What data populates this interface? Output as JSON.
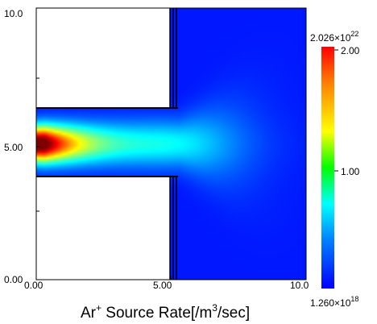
{
  "chart_data": {
    "type": "heatmap",
    "title": "",
    "xlabel": {
      "base": "Ar",
      "base_sup": "+",
      "text1": " Source Rate[/m",
      "sup": "3",
      "text2": "/sec]"
    },
    "ylabel": "",
    "xlim": [
      0.0,
      10.0
    ],
    "ylim": [
      0.0,
      10.0
    ],
    "x_ticks": [
      "0.00",
      "5.00",
      "10.0"
    ],
    "y_ticks": [
      "0.00",
      "5.00",
      "10.0"
    ],
    "colorbar": {
      "max_mantissa": "2.026",
      "max_exponent": "22",
      "min_mantissa": "1.260",
      "min_exponent": "18",
      "multiplier_text": "×10",
      "tick_labels": [
        "2.00",
        "1.00"
      ],
      "tick_values": [
        2.0,
        1.0
      ],
      "max_value": 2.026,
      "min_value": 0.000126,
      "colormap": "jet"
    },
    "geometry": {
      "upper_wall": {
        "x": [
          0.0,
          5.1
        ],
        "y": [
          6.3,
          10.0
        ]
      },
      "lower_wall": {
        "x": [
          0.0,
          5.1
        ],
        "y": [
          0.0,
          3.8
        ]
      },
      "channel": {
        "x": [
          0.0,
          5.3
        ],
        "y": [
          3.8,
          6.3
        ]
      },
      "chamber": {
        "x": [
          5.3,
          10.0
        ],
        "y": [
          0.0,
          10.0
        ]
      }
    },
    "source": {
      "peak_value": 2.026,
      "peak_location": [
        0.3,
        5.0
      ],
      "decay_length_x": 1.9,
      "width_y": 0.45,
      "plume_value": 0.35,
      "plume_center_x": 5.3,
      "background_value": 0.06
    }
  }
}
